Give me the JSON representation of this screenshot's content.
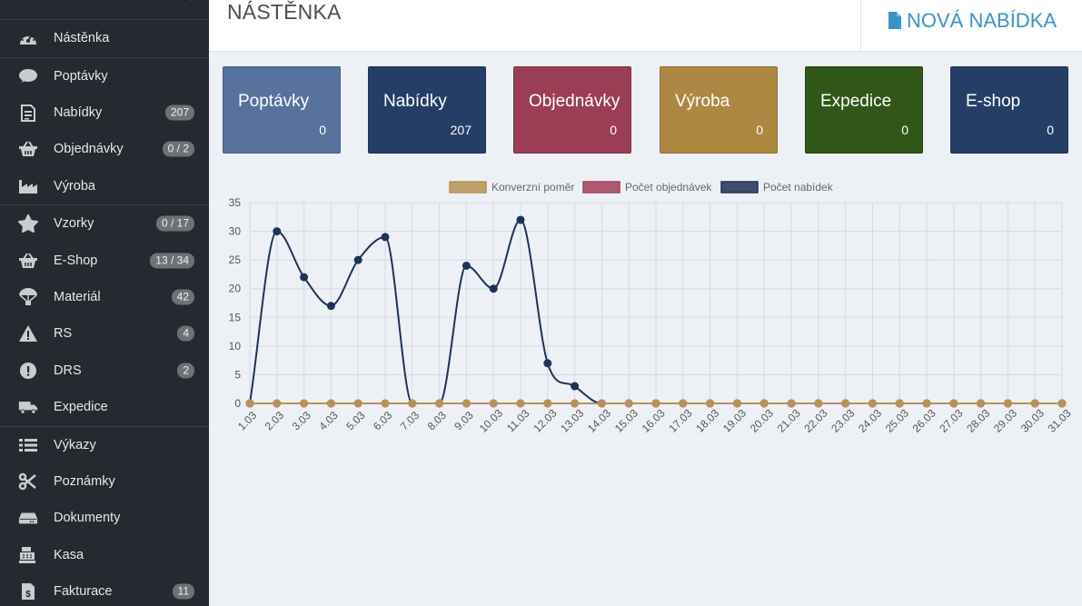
{
  "sidebar": {
    "items": [
      {
        "label": "Nástěnka",
        "icon": "dashboard-gauge-icon",
        "badge": ""
      },
      {
        "label": "Poptávky",
        "icon": "speech-bubble-icon",
        "badge": ""
      },
      {
        "label": "Nabídky",
        "icon": "document-list-icon",
        "badge": "207"
      },
      {
        "label": "Objednávky",
        "icon": "basket-icon",
        "badge": "0 / 2"
      },
      {
        "label": "Výroba",
        "icon": "factory-icon",
        "badge": ""
      },
      {
        "label": "Vzorky",
        "icon": "star-cookie-icon",
        "badge": "0 / 17"
      },
      {
        "label": "E-Shop",
        "icon": "basket-icon",
        "badge": "13 / 34"
      },
      {
        "label": "Materiál",
        "icon": "parachute-icon",
        "badge": "42"
      },
      {
        "label": "RS",
        "icon": "warning-triangle-icon",
        "badge": "4"
      },
      {
        "label": "DRS",
        "icon": "exclamation-circle-icon",
        "badge": "2"
      },
      {
        "label": "Expedice",
        "icon": "truck-icon",
        "badge": ""
      },
      {
        "label": "Výkazy",
        "icon": "list-icon",
        "badge": ""
      },
      {
        "label": "Poznámky",
        "icon": "scissors-icon",
        "badge": ""
      },
      {
        "label": "Dokumenty",
        "icon": "hdd-drive-icon",
        "badge": ""
      },
      {
        "label": "Kasa",
        "icon": "cash-register-icon",
        "badge": ""
      },
      {
        "label": "Fakturace",
        "icon": "invoice-dollar-icon",
        "badge": "11"
      }
    ]
  },
  "header": {
    "title": "NÁSTĚNKA",
    "new_offer_label": "NOVÁ NABÍDKA"
  },
  "tiles": [
    {
      "title": "Poptávky",
      "count": "0",
      "color": "#57729d"
    },
    {
      "title": "Nabídky",
      "count": "207",
      "color": "#253e66"
    },
    {
      "title": "Objednávky",
      "count": "0",
      "color": "#9c3d56"
    },
    {
      "title": "Výroba",
      "count": "0",
      "color": "#ad8842"
    },
    {
      "title": "Expedice",
      "count": "0",
      "color": "#31561a"
    },
    {
      "title": "E-shop",
      "count": "0",
      "color": "#253e66"
    }
  ],
  "chart_data": {
    "type": "line",
    "categories": [
      "1.03",
      "2.03",
      "3.03",
      "4.03",
      "5.03",
      "6.03",
      "7.03",
      "8.03",
      "9.03",
      "10.03",
      "11.03",
      "12.03",
      "13.03",
      "14.03",
      "15.03",
      "16.03",
      "17.03",
      "18.03",
      "19.03",
      "20.03",
      "21.03",
      "22.03",
      "23.03",
      "24.03",
      "25.03",
      "26.03",
      "27.03",
      "28.03",
      "29.03",
      "30.03",
      "31.03"
    ],
    "series": [
      {
        "name": "Konverzní poměr",
        "color": "#b89255",
        "values": [
          0,
          0,
          0,
          0,
          0,
          0,
          0,
          0,
          0,
          0,
          0,
          0,
          0,
          0,
          0,
          0,
          0,
          0,
          0,
          0,
          0,
          0,
          0,
          0,
          0,
          0,
          0,
          0,
          0,
          0,
          0
        ]
      },
      {
        "name": "Počet objednávek",
        "color": "#a5405a",
        "values": [
          0,
          0,
          0,
          0,
          0,
          0,
          0,
          0,
          0,
          0,
          0,
          0,
          0,
          0,
          0,
          0,
          0,
          0,
          0,
          0,
          0,
          0,
          0,
          0,
          0,
          0,
          0,
          0,
          0,
          0,
          0
        ]
      },
      {
        "name": "Počet nabídek",
        "color": "#1f3354",
        "values": [
          0,
          30,
          22,
          17,
          25,
          29,
          0,
          0,
          24,
          20,
          32,
          7,
          3,
          0,
          0,
          0,
          0,
          0,
          0,
          0,
          0,
          0,
          0,
          0,
          0,
          0,
          0,
          0,
          0,
          0,
          0
        ]
      }
    ],
    "yticks": [
      "0",
      "5",
      "10",
      "15",
      "20",
      "25",
      "30",
      "35"
    ],
    "ylim": [
      0,
      35
    ],
    "legend": "top-center",
    "grid": true
  }
}
